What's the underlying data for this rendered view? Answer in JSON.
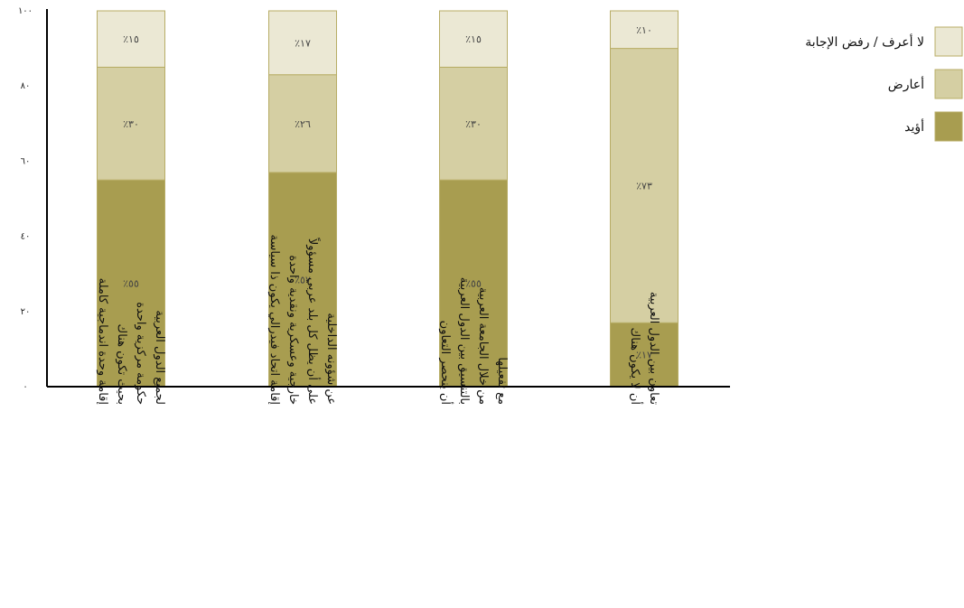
{
  "chart_data": {
    "type": "bar",
    "stacked": true,
    "orientation": "vertical",
    "ylim": [
      0,
      100
    ],
    "yticks": [
      "٠",
      "٢٠",
      "٤٠",
      "٦٠",
      "٨٠",
      "١٠٠"
    ],
    "categories": [
      [
        "إقامة وحدة اندماجية كاملة",
        "بحيث تكون هناك",
        "حكومة مركزية واحدة",
        "لجميع الدول العربية"
      ],
      [
        "إقامة اتحاد فيدرالي يكون ذا سياسة",
        "خارجية وعسكرية ونقدية واحدة",
        "على أن يظل كل بلد عربي مسؤولاً",
        "عن شؤونه الداخلية"
      ],
      [
        "أن ينحصر التعاون",
        "بالتنسيق بين الدول العربية",
        "من خلال الجامعة العربية",
        "مع تفعيلها"
      ],
      [
        "أن لا يكون هناك",
        "تعاون بين الدول العربية"
      ]
    ],
    "series": [
      {
        "name": "أؤيد",
        "color": "#a89d50",
        "values": [
          55,
          57,
          55,
          17
        ],
        "labels": [
          "٪٥٥",
          "٪٥٧",
          "٪٥٥",
          "٪١٧"
        ]
      },
      {
        "name": "أعارض",
        "color": "#d5cfa3",
        "values": [
          30,
          26,
          30,
          73
        ],
        "labels": [
          "٪٣٠",
          "٪٢٦",
          "٪٣٠",
          "٪٧٣"
        ]
      },
      {
        "name": "لا أعرف / رفض الإجابة",
        "color": "#ebe8d4",
        "values": [
          15,
          17,
          15,
          10
        ],
        "labels": [
          "٪١٥",
          "٪١٧",
          "٪١٥",
          "٪١٠"
        ]
      }
    ],
    "legend_order": [
      "لا أعرف / رفض الإجابة",
      "أعارض",
      "أؤيد"
    ],
    "legend_position": "top-right",
    "grid": false,
    "bar_border_color": "#b8ad66"
  }
}
